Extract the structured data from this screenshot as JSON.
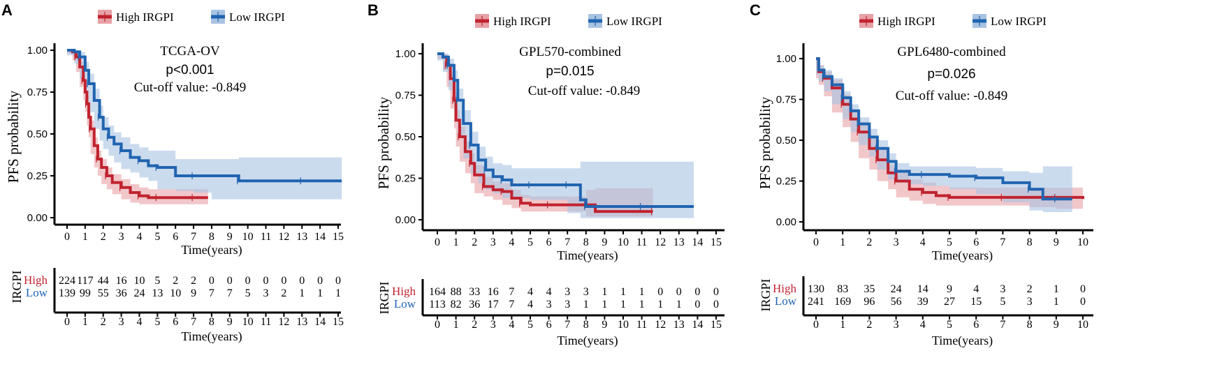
{
  "colors": {
    "high": "#c0232f",
    "high_ci": "#e7a1a7",
    "low": "#2064b0",
    "low_ci": "#a9c3e2"
  },
  "chart_data": [
    {
      "type": "line",
      "panel_label": "A",
      "title": "TCGA-OV",
      "pvalue": "p<0.001",
      "cutoff": "Cut-off value: -0.849",
      "xlabel": "Time(years)",
      "ylabel": "PFS probability",
      "xlim": [
        0,
        15
      ],
      "ylim": [
        0,
        1
      ],
      "xticks": [
        "0",
        "1",
        "2",
        "3",
        "4",
        "5",
        "6",
        "7",
        "8",
        "9",
        "10",
        "11",
        "12",
        "13",
        "14",
        "15"
      ],
      "yticks": [
        "0.00",
        "0.25",
        "0.50",
        "0.75",
        "1.00"
      ],
      "legend": [
        "High IRGPI",
        "Low IRGPI"
      ],
      "risk_table": {
        "title": "IRGPI",
        "row_labels": [
          "High",
          "Low"
        ],
        "xlabel": "Time(years)",
        "times": [
          "0",
          "1",
          "2",
          "3",
          "4",
          "5",
          "6",
          "7",
          "8",
          "9",
          "10",
          "11",
          "12",
          "13",
          "14",
          "15"
        ],
        "high": [
          "224",
          "117",
          "44",
          "16",
          "10",
          "5",
          "2",
          "2",
          "0",
          "0",
          "0",
          "0",
          "0",
          "0",
          "0",
          "0"
        ],
        "low": [
          "139",
          "99",
          "55",
          "36",
          "24",
          "13",
          "10",
          "9",
          "7",
          "7",
          "5",
          "3",
          "2",
          "1",
          "1",
          "1"
        ]
      },
      "series": [
        {
          "name": "High IRGPI",
          "x": [
            0,
            0.3,
            0.5,
            0.7,
            0.9,
            1.0,
            1.1,
            1.2,
            1.3,
            1.5,
            1.7,
            1.9,
            2.2,
            2.5,
            3.0,
            3.5,
            4.0,
            4.5,
            5.0,
            6.0,
            7.0,
            7.8
          ],
          "y": [
            1.0,
            0.99,
            0.96,
            0.9,
            0.82,
            0.75,
            0.68,
            0.6,
            0.53,
            0.43,
            0.35,
            0.3,
            0.25,
            0.21,
            0.18,
            0.15,
            0.13,
            0.12,
            0.12,
            0.12,
            0.12,
            0.12
          ],
          "lower": [
            1.0,
            0.98,
            0.94,
            0.87,
            0.78,
            0.7,
            0.63,
            0.55,
            0.48,
            0.38,
            0.3,
            0.25,
            0.2,
            0.17,
            0.14,
            0.11,
            0.09,
            0.08,
            0.08,
            0.08,
            0.08,
            0.08
          ],
          "upper": [
            1.0,
            1.0,
            0.98,
            0.93,
            0.86,
            0.79,
            0.73,
            0.65,
            0.58,
            0.48,
            0.4,
            0.35,
            0.3,
            0.26,
            0.23,
            0.2,
            0.18,
            0.17,
            0.17,
            0.17,
            0.17,
            0.17
          ]
        },
        {
          "name": "Low IRGPI",
          "x": [
            0,
            0.4,
            0.7,
            1.0,
            1.2,
            1.5,
            1.8,
            2.0,
            2.3,
            2.6,
            3.0,
            3.5,
            4.0,
            4.5,
            5.0,
            6.0,
            7.0,
            8.0,
            9.5,
            11.0,
            13.0,
            15.2
          ],
          "y": [
            1.0,
            0.99,
            0.96,
            0.88,
            0.8,
            0.7,
            0.6,
            0.53,
            0.48,
            0.44,
            0.4,
            0.36,
            0.34,
            0.31,
            0.3,
            0.25,
            0.25,
            0.25,
            0.22,
            0.22,
            0.22,
            0.22
          ],
          "lower": [
            1.0,
            0.97,
            0.92,
            0.83,
            0.74,
            0.63,
            0.53,
            0.46,
            0.41,
            0.37,
            0.33,
            0.29,
            0.27,
            0.24,
            0.22,
            0.17,
            0.16,
            0.15,
            0.11,
            0.11,
            0.11,
            0.11
          ],
          "upper": [
            1.0,
            1.0,
            0.99,
            0.93,
            0.86,
            0.77,
            0.67,
            0.6,
            0.55,
            0.51,
            0.48,
            0.44,
            0.42,
            0.4,
            0.4,
            0.35,
            0.35,
            0.35,
            0.36,
            0.36,
            0.36,
            0.36
          ]
        }
      ]
    },
    {
      "type": "line",
      "panel_label": "B",
      "title": "GPL570-combined",
      "pvalue": "p=0.015",
      "cutoff": "Cut-off value: -0.849",
      "xlabel": "Time(years)",
      "ylabel": "PFS probability",
      "xlim": [
        0,
        15
      ],
      "ylim": [
        0,
        1
      ],
      "xticks": [
        "0",
        "1",
        "2",
        "3",
        "4",
        "5",
        "6",
        "7",
        "8",
        "9",
        "10",
        "11",
        "12",
        "13",
        "14",
        "15"
      ],
      "yticks": [
        "0.00",
        "0.25",
        "0.50",
        "0.75",
        "1.00"
      ],
      "legend": [
        "High IRGPI",
        "Low IRGPI"
      ],
      "risk_table": {
        "title": "IRGPI",
        "row_labels": [
          "High",
          "Low"
        ],
        "xlabel": "Time(years)",
        "times": [
          "0",
          "1",
          "2",
          "3",
          "4",
          "5",
          "6",
          "7",
          "8",
          "9",
          "10",
          "11",
          "12",
          "13",
          "14",
          "15"
        ],
        "high": [
          "164",
          "88",
          "33",
          "16",
          "7",
          "4",
          "4",
          "3",
          "3",
          "1",
          "1",
          "1",
          "0",
          "0",
          "0",
          "0"
        ],
        "low": [
          "113",
          "82",
          "36",
          "17",
          "7",
          "4",
          "3",
          "3",
          "1",
          "1",
          "1",
          "1",
          "1",
          "1",
          "0",
          "0"
        ]
      },
      "series": [
        {
          "name": "High IRGPI",
          "x": [
            0,
            0.3,
            0.5,
            0.7,
            0.9,
            1.0,
            1.2,
            1.5,
            1.8,
            2.0,
            2.5,
            3.0,
            3.5,
            4.0,
            4.5,
            5.0,
            6.0,
            7.0,
            8.0,
            8.5,
            11.6
          ],
          "y": [
            1.0,
            0.98,
            0.93,
            0.85,
            0.72,
            0.6,
            0.5,
            0.41,
            0.34,
            0.27,
            0.2,
            0.18,
            0.17,
            0.13,
            0.1,
            0.09,
            0.09,
            0.09,
            0.09,
            0.05,
            0.05
          ],
          "lower": [
            1.0,
            0.97,
            0.9,
            0.8,
            0.67,
            0.55,
            0.44,
            0.35,
            0.28,
            0.22,
            0.16,
            0.14,
            0.12,
            0.09,
            0.07,
            0.05,
            0.05,
            0.05,
            0.05,
            0.02,
            0.02
          ],
          "upper": [
            1.0,
            1.0,
            0.96,
            0.89,
            0.77,
            0.66,
            0.56,
            0.47,
            0.4,
            0.33,
            0.26,
            0.23,
            0.22,
            0.18,
            0.15,
            0.14,
            0.14,
            0.14,
            0.18,
            0.19,
            0.19
          ]
        },
        {
          "name": "Low IRGPI",
          "x": [
            0,
            0.3,
            0.6,
            0.9,
            1.1,
            1.4,
            1.8,
            2.2,
            2.6,
            3.0,
            3.5,
            4.0,
            5.0,
            6.0,
            7.0,
            7.7,
            8.0,
            9.0,
            11.0,
            13.8
          ],
          "y": [
            1.0,
            0.98,
            0.93,
            0.84,
            0.72,
            0.58,
            0.45,
            0.36,
            0.3,
            0.26,
            0.24,
            0.21,
            0.21,
            0.21,
            0.21,
            0.12,
            0.08,
            0.08,
            0.08,
            0.08
          ],
          "lower": [
            1.0,
            0.96,
            0.89,
            0.78,
            0.65,
            0.5,
            0.37,
            0.28,
            0.22,
            0.18,
            0.16,
            0.13,
            0.13,
            0.12,
            0.12,
            0.04,
            0.01,
            0.01,
            0.01,
            0.01
          ],
          "upper": [
            1.0,
            1.0,
            0.97,
            0.9,
            0.79,
            0.66,
            0.53,
            0.44,
            0.38,
            0.34,
            0.33,
            0.31,
            0.31,
            0.31,
            0.31,
            0.35,
            0.35,
            0.35,
            0.35,
            0.35
          ]
        }
      ]
    },
    {
      "type": "line",
      "panel_label": "C",
      "title": "GPL6480-combined",
      "pvalue": "p=0.026",
      "cutoff": "Cut-off value: -0.849",
      "xlabel": "Time(years)",
      "ylabel": "PFS probability",
      "xlim": [
        0,
        10
      ],
      "ylim": [
        0,
        1
      ],
      "xticks": [
        "0",
        "1",
        "2",
        "3",
        "4",
        "5",
        "6",
        "7",
        "8",
        "9",
        "10"
      ],
      "yticks": [
        "0.00",
        "0.25",
        "0.50",
        "0.75",
        "1.00"
      ],
      "legend": [
        "High IRGPI",
        "Low IRGPI"
      ],
      "risk_table": {
        "title": "IRGPI",
        "row_labels": [
          "High",
          "Low"
        ],
        "xlabel": "Time(years)",
        "times": [
          "0",
          "1",
          "2",
          "3",
          "4",
          "5",
          "6",
          "7",
          "8",
          "9",
          "10"
        ],
        "high": [
          "130",
          "83",
          "35",
          "24",
          "14",
          "9",
          "4",
          "3",
          "2",
          "1",
          "0"
        ],
        "low": [
          "241",
          "169",
          "96",
          "56",
          "39",
          "27",
          "15",
          "5",
          "3",
          "1",
          "0"
        ]
      },
      "series": [
        {
          "name": "High IRGPI",
          "x": [
            0,
            0.1,
            0.3,
            0.6,
            1.0,
            1.3,
            1.6,
            2.0,
            2.3,
            2.7,
            3.0,
            3.5,
            4.0,
            4.5,
            5.0,
            6.0,
            7.0,
            8.0,
            9.0,
            10.0
          ],
          "y": [
            1.0,
            0.92,
            0.88,
            0.82,
            0.72,
            0.63,
            0.55,
            0.45,
            0.38,
            0.3,
            0.25,
            0.2,
            0.18,
            0.16,
            0.15,
            0.15,
            0.15,
            0.15,
            0.15,
            0.14
          ],
          "lower": [
            1.0,
            0.88,
            0.84,
            0.77,
            0.67,
            0.58,
            0.49,
            0.39,
            0.32,
            0.25,
            0.2,
            0.15,
            0.13,
            0.11,
            0.1,
            0.1,
            0.1,
            0.1,
            0.09,
            0.08
          ],
          "upper": [
            1.0,
            0.96,
            0.92,
            0.87,
            0.78,
            0.69,
            0.61,
            0.51,
            0.44,
            0.35,
            0.3,
            0.26,
            0.24,
            0.22,
            0.21,
            0.21,
            0.21,
            0.21,
            0.21,
            0.21
          ]
        },
        {
          "name": "Low IRGPI",
          "x": [
            0,
            0.1,
            0.3,
            0.6,
            1.0,
            1.3,
            1.6,
            2.0,
            2.3,
            2.7,
            3.0,
            3.5,
            4.0,
            5.0,
            6.0,
            7.0,
            8.0,
            8.5,
            9.0,
            9.6
          ],
          "y": [
            1.0,
            0.93,
            0.89,
            0.84,
            0.76,
            0.68,
            0.6,
            0.52,
            0.45,
            0.37,
            0.31,
            0.29,
            0.29,
            0.28,
            0.27,
            0.24,
            0.2,
            0.14,
            0.14,
            0.14
          ],
          "lower": [
            1.0,
            0.9,
            0.86,
            0.8,
            0.72,
            0.63,
            0.55,
            0.47,
            0.4,
            0.32,
            0.26,
            0.24,
            0.23,
            0.22,
            0.2,
            0.17,
            0.12,
            0.07,
            0.06,
            0.06
          ],
          "upper": [
            1.0,
            0.96,
            0.93,
            0.88,
            0.8,
            0.72,
            0.64,
            0.57,
            0.5,
            0.42,
            0.36,
            0.34,
            0.34,
            0.34,
            0.33,
            0.31,
            0.3,
            0.34,
            0.34,
            0.34
          ]
        }
      ]
    }
  ]
}
